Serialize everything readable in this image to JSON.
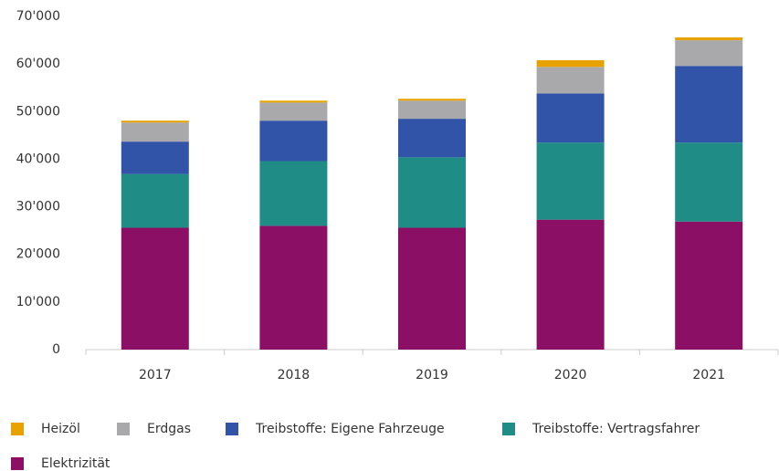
{
  "chart_data": {
    "type": "bar",
    "stacked": true,
    "categories": [
      "2017",
      "2018",
      "2019",
      "2020",
      "2021"
    ],
    "series": [
      {
        "name": "Heizöl",
        "color": "#e8a200",
        "values": [
          400,
          400,
          400,
          1400,
          600
        ]
      },
      {
        "name": "Erdgas",
        "color": "#a9a9ab",
        "values": [
          4000,
          3800,
          3800,
          5600,
          5400
        ]
      },
      {
        "name": "Treibstoffe: Eigene Fahrzeuge",
        "color": "#3154a8",
        "values": [
          6800,
          8500,
          8100,
          10300,
          16100
        ]
      },
      {
        "name": "Treibstoffe: Vertragsfahrer",
        "color": "#1f8c86",
        "values": [
          11300,
          13600,
          14800,
          16200,
          16600
        ]
      },
      {
        "name": "Elektrizität",
        "color": "#8b0f64",
        "values": [
          25600,
          26000,
          25600,
          27300,
          26900
        ]
      }
    ],
    "ylim": [
      0,
      70000
    ],
    "yticks": [
      0,
      {
        "value": 10000,
        "label": "10'000"
      },
      {
        "value": 20000,
        "label": "20'000"
      },
      {
        "value": 30000,
        "label": "30'000"
      },
      {
        "value": 40000,
        "label": "40'000"
      },
      {
        "value": 50000,
        "label": "50'000"
      },
      {
        "value": 60000,
        "label": "60'000"
      },
      {
        "value": 70000,
        "label": "70'000"
      }
    ],
    "grid": false,
    "legend": "bottom"
  }
}
